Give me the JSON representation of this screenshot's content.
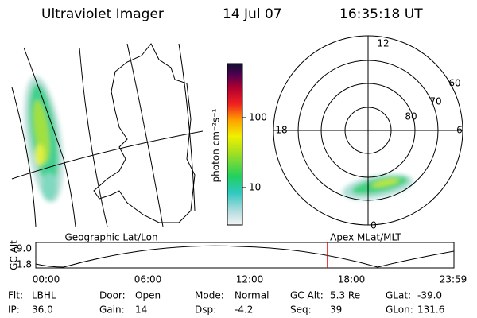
{
  "header": {
    "title": "Ultraviolet Imager",
    "date": "14 Jul 07",
    "time": "16:35:18 UT"
  },
  "colorbar": {
    "label": "photon cm⁻²s⁻¹",
    "ticks": [
      "100",
      "10"
    ]
  },
  "polar": {
    "mlt_labels": [
      "12",
      "18",
      "6",
      "0"
    ],
    "lat_labels": [
      "60",
      "70",
      "80"
    ]
  },
  "orbit": {
    "left_label": "Geographic Lat/Lon",
    "right_label": "Apex MLat/MLT",
    "y_label": "GC Alt",
    "y_ticks": [
      "9.0",
      "1.8"
    ],
    "x_ticks": [
      "00:00",
      "06:00",
      "12:00",
      "18:00",
      "23:59"
    ]
  },
  "info": {
    "rows": [
      [
        [
          "Flt:",
          "LBHL"
        ],
        [
          "Door:",
          "Open"
        ],
        [
          "Mode:",
          "Normal"
        ],
        [
          "GC Alt:",
          "5.3 Re"
        ],
        [
          "GLat:",
          "-39.0"
        ]
      ],
      [
        [
          "IP:",
          "36.0"
        ],
        [
          "Gain:",
          "14"
        ],
        [
          "Dsp:",
          "-4.2"
        ],
        [
          "Seq:",
          "39"
        ],
        [
          "GLon:",
          "131.6"
        ]
      ]
    ]
  }
}
